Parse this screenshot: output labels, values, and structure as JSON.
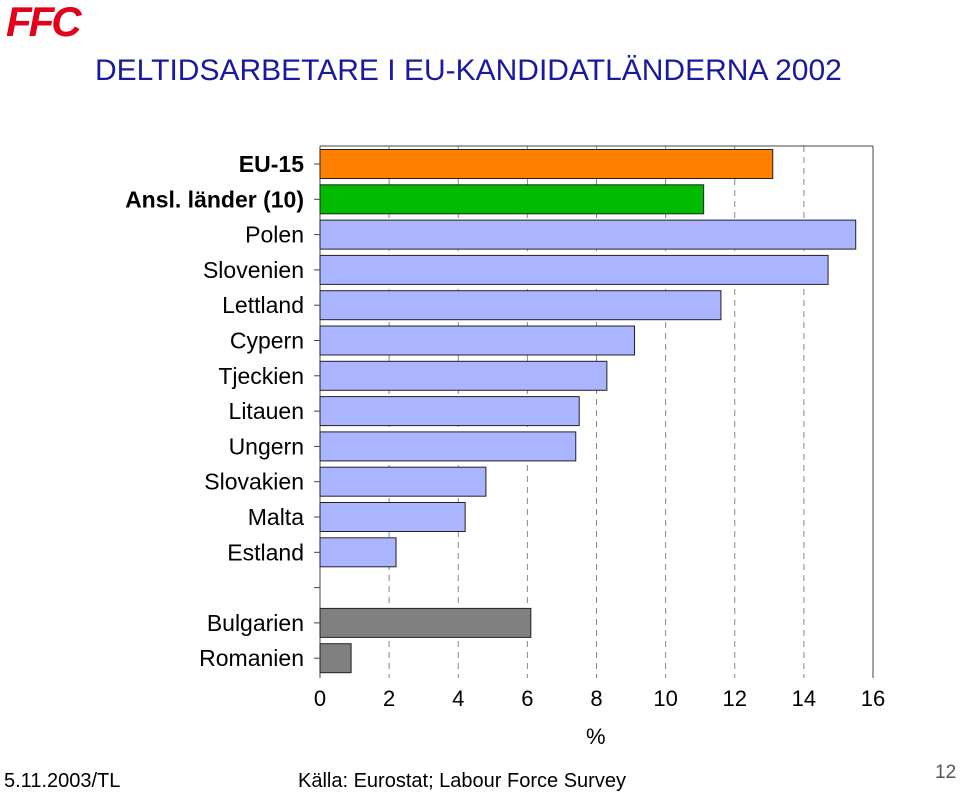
{
  "header": {
    "logo": "FFC",
    "title": "DELTIDSARBETARE I  EU-KANDIDATLÄNDERNA 2002"
  },
  "footer": {
    "date_author": "5.11.2003/TL",
    "source": "Källa: Eurostat; Labour Force Survey",
    "page": "12"
  },
  "colors": {
    "eu15": "#ff8000",
    "candidates": "#00bb00",
    "country": "#aab4ff",
    "other": "#808080",
    "title": "#1a1aa0"
  },
  "chart_data": {
    "type": "bar",
    "orientation": "horizontal",
    "xlabel": "%",
    "xlim": [
      0,
      16
    ],
    "xticks": [
      "0",
      "2",
      "4",
      "6",
      "8",
      "10",
      "12",
      "14",
      "16"
    ],
    "grid": "vertical dashed",
    "categories": [
      "EU-15",
      "Ansl. länder (10)",
      "Polen",
      "Slovenien",
      "Lettland",
      "Cypern",
      "Tjeckien",
      "Litauen",
      "Ungern",
      "Slovakien",
      "Malta",
      "Estland",
      "Bulgarien",
      "Romanien"
    ],
    "values": [
      13.1,
      11.1,
      15.5,
      14.7,
      11.6,
      9.1,
      8.3,
      7.5,
      7.4,
      4.8,
      4.2,
      2.2,
      6.1,
      0.9
    ],
    "bold_categories": [
      "EU-15",
      "Ansl. länder (10)"
    ]
  }
}
